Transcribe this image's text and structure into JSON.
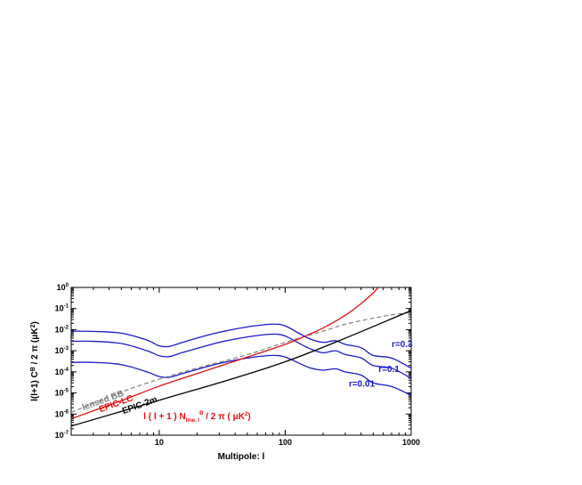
{
  "chart_data": {
    "type": "line",
    "xlabel": "Multipole: l",
    "ylabel": "l(l+1) C_l^B / 2π (μK²)",
    "xscale": "log",
    "yscale": "log",
    "xlim": [
      2,
      1000
    ],
    "ylim": [
      1e-07,
      1
    ],
    "x_ticks": [
      {
        "value": 10,
        "label": "10"
      },
      {
        "value": 100,
        "label": "100"
      },
      {
        "value": 1000,
        "label": "1000"
      }
    ],
    "y_ticks": [
      {
        "value": 1,
        "base": "10",
        "exp": "0"
      },
      {
        "value": 0.1,
        "base": "10",
        "exp": "-1"
      },
      {
        "value": 0.01,
        "base": "10",
        "exp": "-2"
      },
      {
        "value": 0.001,
        "base": "10",
        "exp": "-3"
      },
      {
        "value": 0.0001,
        "base": "10",
        "exp": "-4"
      },
      {
        "value": 1e-05,
        "base": "10",
        "exp": "-5"
      },
      {
        "value": 1e-06,
        "base": "10",
        "exp": "-6"
      },
      {
        "value": 1e-07,
        "base": "10",
        "exp": "-7"
      }
    ],
    "grid": false,
    "series": [
      {
        "name": "r=0.3",
        "color": "#1a1acc",
        "style": "solid",
        "x": [
          2,
          3,
          5,
          8,
          10,
          12,
          15,
          20,
          30,
          50,
          80,
          100,
          130,
          160,
          200,
          250,
          300,
          400,
          500,
          700,
          1000
        ],
        "y": [
          0.0085,
          0.0083,
          0.0068,
          0.0032,
          0.0017,
          0.0016,
          0.0024,
          0.004,
          0.0075,
          0.0135,
          0.0182,
          0.015,
          0.0065,
          0.0035,
          0.0025,
          0.003,
          0.002,
          0.0014,
          0.0006,
          0.00045,
          0.00015
        ]
      },
      {
        "name": "r=0.1",
        "color": "#1a1acc",
        "style": "solid",
        "x": [
          2,
          3,
          5,
          8,
          10,
          12,
          15,
          20,
          30,
          50,
          80,
          100,
          130,
          160,
          200,
          250,
          300,
          400,
          500,
          700,
          1000
        ],
        "y": [
          0.0028,
          0.0028,
          0.0022,
          0.001,
          0.00058,
          0.00053,
          0.0008,
          0.0013,
          0.0025,
          0.0045,
          0.0061,
          0.005,
          0.0022,
          0.0012,
          0.0008,
          0.001,
          0.00066,
          0.00046,
          0.0002,
          0.00015,
          5e-05
        ]
      },
      {
        "name": "r=0.01",
        "color": "#1a1acc",
        "style": "solid",
        "x": [
          2,
          3,
          5,
          8,
          10,
          12,
          15,
          20,
          30,
          50,
          80,
          100,
          130,
          160,
          200,
          250,
          300,
          400,
          500,
          700,
          1000
        ],
        "y": [
          0.00028,
          0.00028,
          0.00022,
          0.0001,
          6e-05,
          5.5e-05,
          8e-05,
          0.00013,
          0.00025,
          0.00045,
          0.0006,
          0.0005,
          0.00025,
          0.00015,
          0.00012,
          0.00014,
          0.0001,
          7e-05,
          3e-05,
          2e-05,
          7.7e-06
        ]
      },
      {
        "name": "lensed BB",
        "color": "#808080",
        "style": "dashed",
        "x": [
          2,
          5,
          10,
          20,
          50,
          100,
          200,
          300,
          500,
          700,
          1000
        ],
        "y": [
          1.2e-06,
          1.1e-05,
          4.5e-05,
          0.00015,
          0.00065,
          0.0025,
          0.0085,
          0.018,
          0.035,
          0.05,
          0.065
        ]
      },
      {
        "name": "EPIC-LC",
        "color": "#e01010",
        "style": "solid",
        "x": [
          2,
          5,
          10,
          20,
          50,
          100,
          150,
          200,
          300,
          400,
          500,
          550
        ],
        "y": [
          6e-07,
          4.3e-06,
          2.1e-05,
          8.3e-05,
          0.0005,
          0.002,
          0.0055,
          0.012,
          0.048,
          0.17,
          0.55,
          1.0
        ]
      },
      {
        "name": "EPIC-2m",
        "color": "#000000",
        "style": "solid",
        "x": [
          2,
          10,
          100,
          1000
        ],
        "y": [
          2.7e-07,
          4.5e-06,
          0.0003,
          0.08
        ]
      }
    ],
    "annotations": [
      {
        "text": "r=0.3",
        "color": "#1a1acc",
        "x": 700,
        "y": 0.0015
      },
      {
        "text": "r=0.1",
        "color": "#1a1acc",
        "x": 550,
        "y": 0.0001
      },
      {
        "text": "r=0.01",
        "color": "#1a1acc",
        "x": 320,
        "y": 2e-05
      },
      {
        "text": "lensed BB",
        "color": "#808080",
        "x": 2.5,
        "y": 1.5e-06,
        "rotate": -20
      },
      {
        "text": "EPIC-LC",
        "color": "#e01010",
        "x": 3.4,
        "y": 1.2e-06,
        "rotate": -20
      },
      {
        "text": "EPIC-2m",
        "color": "#000000",
        "x": 5.2,
        "y": 1e-06,
        "rotate": -20
      },
      {
        "text_parts": {
          "before": "l ( l + 1 ) N",
          "sub": "line, l",
          "sup": "B",
          "after": " / 2 π ( μK",
          "sup2": "2",
          "end": ")"
        },
        "color": "#e01010",
        "x": 7.5,
        "y": 5.8e-07
      }
    ]
  }
}
